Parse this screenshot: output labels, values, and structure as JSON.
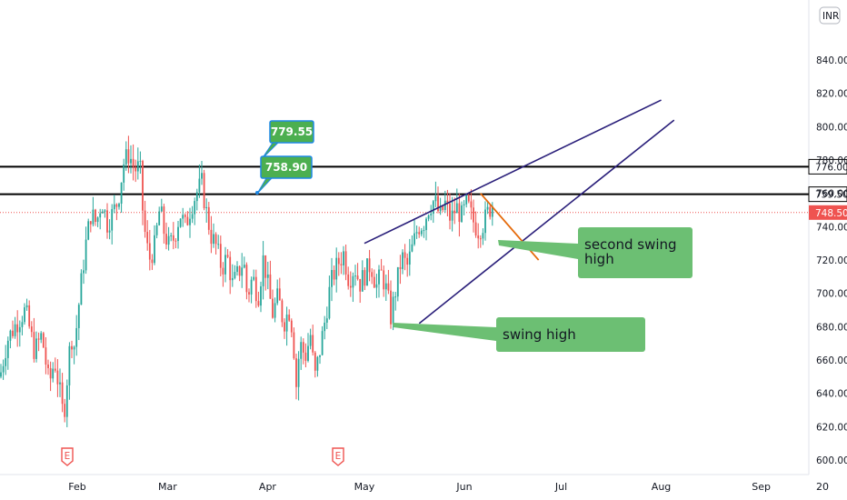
{
  "chart_data": {
    "type": "candlestick",
    "currency": "INR",
    "y_range": [
      594,
      852
    ],
    "y_ticks": [
      "600.00",
      "620.00",
      "640.00",
      "660.00",
      "680.00",
      "700.00",
      "720.00",
      "740.00",
      "760.00",
      "780.00",
      "800.00",
      "820.00",
      "840.00"
    ],
    "x_ticks": [
      "Feb",
      "Mar",
      "Apr",
      "May",
      "Jun",
      "Jul",
      "Aug",
      "Sep",
      "20"
    ],
    "close_path": [
      [
        0,
        650
      ],
      [
        8,
        672
      ],
      [
        18,
        682
      ],
      [
        28,
        690
      ],
      [
        38,
        665
      ],
      [
        46,
        675
      ],
      [
        54,
        645
      ],
      [
        60,
        660
      ],
      [
        66,
        640
      ],
      [
        70,
        625
      ],
      [
        74,
        650
      ],
      [
        78,
        675
      ],
      [
        82,
        668
      ],
      [
        88,
        700
      ],
      [
        94,
        728
      ],
      [
        100,
        748
      ],
      [
        106,
        742
      ],
      [
        112,
        756
      ],
      [
        118,
        742
      ],
      [
        124,
        748
      ],
      [
        130,
        756
      ],
      [
        136,
        778
      ],
      [
        142,
        784
      ],
      [
        148,
        774
      ],
      [
        154,
        776
      ],
      [
        158,
        742
      ],
      [
        164,
        720
      ],
      [
        170,
        728
      ],
      [
        176,
        752
      ],
      [
        180,
        738
      ],
      [
        186,
        728
      ],
      [
        192,
        734
      ],
      [
        198,
        748
      ],
      [
        204,
        740
      ],
      [
        210,
        752
      ],
      [
        216,
        760
      ],
      [
        222,
        766
      ],
      [
        226,
        752
      ],
      [
        232,
        735
      ],
      [
        238,
        728
      ],
      [
        244,
        715
      ],
      [
        250,
        722
      ],
      [
        256,
        705
      ],
      [
        262,
        712
      ],
      [
        268,
        720
      ],
      [
        272,
        698
      ],
      [
        278,
        710
      ],
      [
        284,
        698
      ],
      [
        290,
        722
      ],
      [
        296,
        700
      ],
      [
        300,
        688
      ],
      [
        306,
        698
      ],
      [
        312,
        682
      ],
      [
        318,
        690
      ],
      [
        322,
        678
      ],
      [
        326,
        645
      ],
      [
        330,
        670
      ],
      [
        336,
        662
      ],
      [
        342,
        676
      ],
      [
        346,
        648
      ],
      [
        352,
        666
      ],
      [
        358,
        685
      ],
      [
        362,
        700
      ],
      [
        366,
        710
      ],
      [
        372,
        718
      ],
      [
        378,
        724
      ],
      [
        384,
        708
      ],
      [
        390,
        716
      ],
      [
        396,
        706
      ],
      [
        402,
        712
      ],
      [
        408,
        718
      ],
      [
        414,
        704
      ],
      [
        420,
        712
      ],
      [
        426,
        700
      ],
      [
        430,
        686
      ],
      [
        436,
        704
      ],
      [
        442,
        722
      ],
      [
        448,
        716
      ],
      [
        454,
        728
      ],
      [
        460,
        740
      ],
      [
        466,
        742
      ],
      [
        472,
        752
      ],
      [
        478,
        756
      ],
      [
        484,
        746
      ],
      [
        490,
        754
      ],
      [
        496,
        744
      ],
      [
        502,
        752
      ],
      [
        508,
        746
      ],
      [
        514,
        754
      ],
      [
        520,
        744
      ],
      [
        526,
        738
      ],
      [
        532,
        742
      ],
      [
        538,
        750
      ],
      [
        544,
        756
      ]
    ],
    "horizontal_levels": [
      776.0,
      759.5
    ],
    "last_price": 748.5,
    "price_labels": [
      "776.00",
      "759.50",
      "748.50"
    ],
    "trend_lines": [
      {
        "color": "navy",
        "from": [
          "2022-05-01",
          730
        ],
        "to": [
          "2022-08-01",
          816
        ]
      },
      {
        "color": "navy",
        "from": [
          "2022-05-18",
          682
        ],
        "to": [
          "2022-08-05",
          804
        ]
      },
      {
        "color": "orange",
        "from": [
          "2022-06-06",
          760
        ],
        "to": [
          "2022-06-24",
          720
        ]
      }
    ],
    "price_tags": [
      "779.55",
      "758.90"
    ],
    "callouts": [
      {
        "lines": [
          "second swing",
          "high"
        ]
      },
      {
        "lines": [
          "swing high"
        ]
      }
    ],
    "earnings_marker": "E",
    "colors": {
      "up": "#26a69a",
      "down": "#ef5350",
      "trend": "#2a1f7a",
      "orange": "#e56a0b",
      "callout": "#6cbf73",
      "tag": "#4caf50",
      "tag_border": "#1e88e5"
    }
  }
}
